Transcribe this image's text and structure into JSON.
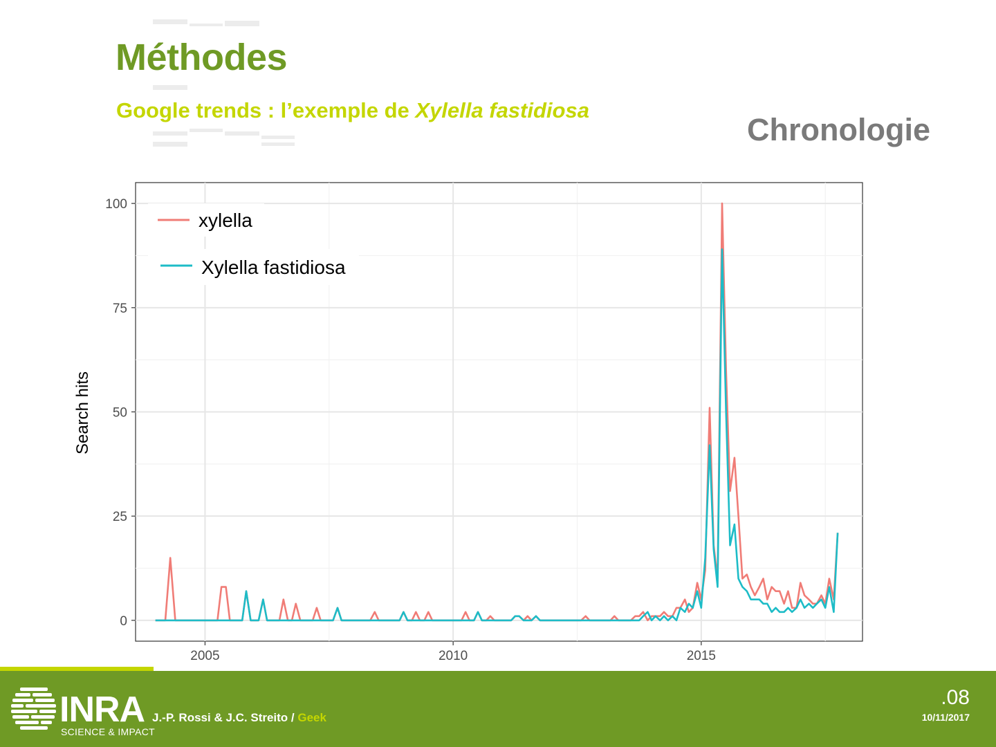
{
  "slide": {
    "title": "Méthodes",
    "subtitle_prefix": "Google trends : l’exemple de ",
    "subtitle_species": "Xylella fastidiosa",
    "section": "Chronologie"
  },
  "footer": {
    "logo_word": "INRA",
    "logo_tagline": "SCIENCE & IMPACT",
    "authors": "J.-P. Rossi & J.C. Streito / ",
    "authors_highlight": "Geek",
    "page_number": ".08",
    "date": "10/11/2017"
  },
  "colors": {
    "accent_green": "#6f9a25",
    "accent_lime": "#c4d600",
    "series_xylella": "#f07c76",
    "series_xylella_fastidiosa": "#1dbcc7"
  },
  "chart_data": {
    "type": "line",
    "title": "",
    "xlabel": "",
    "ylabel": "Search hits",
    "xlim": [
      2003.6,
      2018.25
    ],
    "ylim": [
      -5,
      105
    ],
    "x_ticks": [
      2005,
      2010,
      2015
    ],
    "y_ticks": [
      0,
      25,
      50,
      75,
      100
    ],
    "grid": true,
    "legend_position": "top-left",
    "series": [
      {
        "name": "xylella",
        "color": "#f07c76",
        "points": [
          [
            2004.0,
            0
          ],
          [
            2004.2,
            0
          ],
          [
            2004.3,
            15
          ],
          [
            2004.4,
            0
          ],
          [
            2005.0,
            0
          ],
          [
            2005.25,
            0
          ],
          [
            2005.33,
            8
          ],
          [
            2005.42,
            8
          ],
          [
            2005.5,
            0
          ],
          [
            2005.75,
            0
          ],
          [
            2005.83,
            7
          ],
          [
            2005.92,
            0
          ],
          [
            2006.08,
            0
          ],
          [
            2006.17,
            5
          ],
          [
            2006.25,
            0
          ],
          [
            2006.5,
            0
          ],
          [
            2006.58,
            5
          ],
          [
            2006.67,
            0
          ],
          [
            2006.75,
            0
          ],
          [
            2006.83,
            4
          ],
          [
            2006.92,
            0
          ],
          [
            2007.17,
            0
          ],
          [
            2007.25,
            3
          ],
          [
            2007.33,
            0
          ],
          [
            2007.58,
            0
          ],
          [
            2007.67,
            3
          ],
          [
            2007.75,
            0
          ],
          [
            2008.33,
            0
          ],
          [
            2008.42,
            2
          ],
          [
            2008.5,
            0
          ],
          [
            2008.92,
            0
          ],
          [
            2009.0,
            2
          ],
          [
            2009.08,
            0
          ],
          [
            2009.17,
            0
          ],
          [
            2009.25,
            2
          ],
          [
            2009.33,
            0
          ],
          [
            2009.42,
            0
          ],
          [
            2009.5,
            2
          ],
          [
            2009.58,
            0
          ],
          [
            2010.17,
            0
          ],
          [
            2010.25,
            2
          ],
          [
            2010.33,
            0
          ],
          [
            2010.42,
            0
          ],
          [
            2010.5,
            2
          ],
          [
            2010.58,
            0
          ],
          [
            2010.67,
            0
          ],
          [
            2010.75,
            1
          ],
          [
            2010.83,
            0
          ],
          [
            2011.17,
            0
          ],
          [
            2011.25,
            1
          ],
          [
            2011.33,
            1
          ],
          [
            2011.42,
            0
          ],
          [
            2011.5,
            1
          ],
          [
            2011.58,
            0
          ],
          [
            2011.67,
            1
          ],
          [
            2011.75,
            0
          ],
          [
            2012.58,
            0
          ],
          [
            2012.67,
            1
          ],
          [
            2012.75,
            0
          ],
          [
            2013.17,
            0
          ],
          [
            2013.25,
            1
          ],
          [
            2013.33,
            0
          ],
          [
            2013.58,
            0
          ],
          [
            2013.67,
            1
          ],
          [
            2013.75,
            1
          ],
          [
            2013.83,
            2
          ],
          [
            2013.92,
            0
          ],
          [
            2014.0,
            1
          ],
          [
            2014.08,
            1
          ],
          [
            2014.17,
            1
          ],
          [
            2014.25,
            2
          ],
          [
            2014.33,
            1
          ],
          [
            2014.42,
            1
          ],
          [
            2014.5,
            3
          ],
          [
            2014.58,
            3
          ],
          [
            2014.67,
            5
          ],
          [
            2014.75,
            2
          ],
          [
            2014.83,
            3
          ],
          [
            2014.92,
            9
          ],
          [
            2015.0,
            5
          ],
          [
            2015.08,
            12
          ],
          [
            2015.17,
            51
          ],
          [
            2015.25,
            18
          ],
          [
            2015.33,
            10
          ],
          [
            2015.42,
            100
          ],
          [
            2015.5,
            60
          ],
          [
            2015.58,
            31
          ],
          [
            2015.67,
            39
          ],
          [
            2015.75,
            25
          ],
          [
            2015.83,
            10
          ],
          [
            2015.92,
            11
          ],
          [
            2016.0,
            8
          ],
          [
            2016.08,
            6
          ],
          [
            2016.17,
            8
          ],
          [
            2016.25,
            10
          ],
          [
            2016.33,
            5
          ],
          [
            2016.42,
            8
          ],
          [
            2016.5,
            7
          ],
          [
            2016.58,
            7
          ],
          [
            2016.67,
            4
          ],
          [
            2016.75,
            7
          ],
          [
            2016.83,
            3
          ],
          [
            2016.92,
            3
          ],
          [
            2017.0,
            9
          ],
          [
            2017.08,
            6
          ],
          [
            2017.17,
            5
          ],
          [
            2017.25,
            4
          ],
          [
            2017.33,
            4
          ],
          [
            2017.42,
            6
          ],
          [
            2017.5,
            4
          ],
          [
            2017.58,
            10
          ],
          [
            2017.67,
            5
          ],
          [
            2017.75,
            21
          ]
        ]
      },
      {
        "name": "Xylella fastidiosa",
        "color": "#1dbcc7",
        "points": [
          [
            2004.0,
            0
          ],
          [
            2005.75,
            0
          ],
          [
            2005.83,
            7
          ],
          [
            2005.92,
            0
          ],
          [
            2006.08,
            0
          ],
          [
            2006.17,
            5
          ],
          [
            2006.25,
            0
          ],
          [
            2007.58,
            0
          ],
          [
            2007.67,
            3
          ],
          [
            2007.75,
            0
          ],
          [
            2008.92,
            0
          ],
          [
            2009.0,
            2
          ],
          [
            2009.08,
            0
          ],
          [
            2010.42,
            0
          ],
          [
            2010.5,
            2
          ],
          [
            2010.58,
            0
          ],
          [
            2011.17,
            0
          ],
          [
            2011.25,
            1
          ],
          [
            2011.33,
            1
          ],
          [
            2011.42,
            0
          ],
          [
            2011.58,
            0
          ],
          [
            2011.67,
            1
          ],
          [
            2011.75,
            0
          ],
          [
            2013.75,
            0
          ],
          [
            2013.83,
            1
          ],
          [
            2013.92,
            2
          ],
          [
            2014.0,
            0
          ],
          [
            2014.08,
            1
          ],
          [
            2014.17,
            0
          ],
          [
            2014.25,
            1
          ],
          [
            2014.33,
            0
          ],
          [
            2014.42,
            1
          ],
          [
            2014.5,
            0
          ],
          [
            2014.58,
            3
          ],
          [
            2014.67,
            2
          ],
          [
            2014.75,
            4
          ],
          [
            2014.83,
            3
          ],
          [
            2014.92,
            7
          ],
          [
            2015.0,
            3
          ],
          [
            2015.08,
            15
          ],
          [
            2015.17,
            42
          ],
          [
            2015.25,
            17
          ],
          [
            2015.33,
            8
          ],
          [
            2015.42,
            89
          ],
          [
            2015.5,
            50
          ],
          [
            2015.58,
            18
          ],
          [
            2015.67,
            23
          ],
          [
            2015.75,
            10
          ],
          [
            2015.83,
            8
          ],
          [
            2015.92,
            7
          ],
          [
            2016.0,
            5
          ],
          [
            2016.08,
            5
          ],
          [
            2016.17,
            5
          ],
          [
            2016.25,
            4
          ],
          [
            2016.33,
            4
          ],
          [
            2016.42,
            2
          ],
          [
            2016.5,
            3
          ],
          [
            2016.58,
            2
          ],
          [
            2016.67,
            2
          ],
          [
            2016.75,
            3
          ],
          [
            2016.83,
            2
          ],
          [
            2016.92,
            3
          ],
          [
            2017.0,
            5
          ],
          [
            2017.08,
            3
          ],
          [
            2017.17,
            4
          ],
          [
            2017.25,
            3
          ],
          [
            2017.33,
            4
          ],
          [
            2017.42,
            5
          ],
          [
            2017.5,
            3
          ],
          [
            2017.58,
            8
          ],
          [
            2017.67,
            2
          ],
          [
            2017.75,
            21
          ]
        ]
      }
    ]
  }
}
